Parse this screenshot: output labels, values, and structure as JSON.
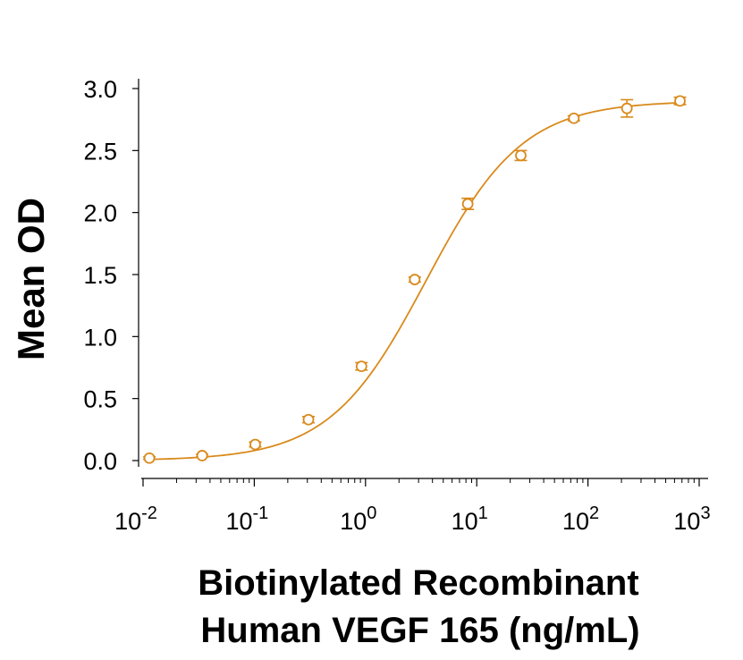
{
  "chart_data": {
    "type": "scatter",
    "ylabel": "Mean OD",
    "xlabel_lines": [
      "Biotinylated Recombinant",
      "Human VEGF 165 (ng/mL)"
    ],
    "x_scale": "log",
    "xlim": [
      0.01,
      1000
    ],
    "ylim": [
      0,
      3.0
    ],
    "x_ticks": [
      {
        "base": "10",
        "exp": "-2",
        "value": 0.01
      },
      {
        "base": "10",
        "exp": "-1",
        "value": 0.1
      },
      {
        "base": "10",
        "exp": "0",
        "value": 1
      },
      {
        "base": "10",
        "exp": "1",
        "value": 10
      },
      {
        "base": "10",
        "exp": "2",
        "value": 100
      },
      {
        "base": "10",
        "exp": "3",
        "value": 1000
      }
    ],
    "y_ticks": [
      "0.0",
      "0.5",
      "1.0",
      "1.5",
      "2.0",
      "2.5",
      "3.0"
    ],
    "grid": false,
    "series_color": "#d98a1c",
    "points": [
      {
        "x": 0.0114,
        "y": 0.02,
        "err": 0.01
      },
      {
        "x": 0.034,
        "y": 0.04,
        "err": 0.01
      },
      {
        "x": 0.102,
        "y": 0.13,
        "err": 0.02
      },
      {
        "x": 0.307,
        "y": 0.33,
        "err": 0.025
      },
      {
        "x": 0.92,
        "y": 0.76,
        "err": 0.03
      },
      {
        "x": 2.77,
        "y": 1.46,
        "err": 0.02
      },
      {
        "x": 8.3,
        "y": 2.07,
        "err": 0.045
      },
      {
        "x": 24.9,
        "y": 2.46,
        "err": 0.04
      },
      {
        "x": 74.7,
        "y": 2.76,
        "err": 0.02
      },
      {
        "x": 224,
        "y": 2.84,
        "err": 0.07
      },
      {
        "x": 672,
        "y": 2.9,
        "err": 0.03
      }
    ],
    "fit": {
      "bottom": 0.0,
      "top": 2.9,
      "ec50": 3.5,
      "hill": 1.0
    }
  }
}
